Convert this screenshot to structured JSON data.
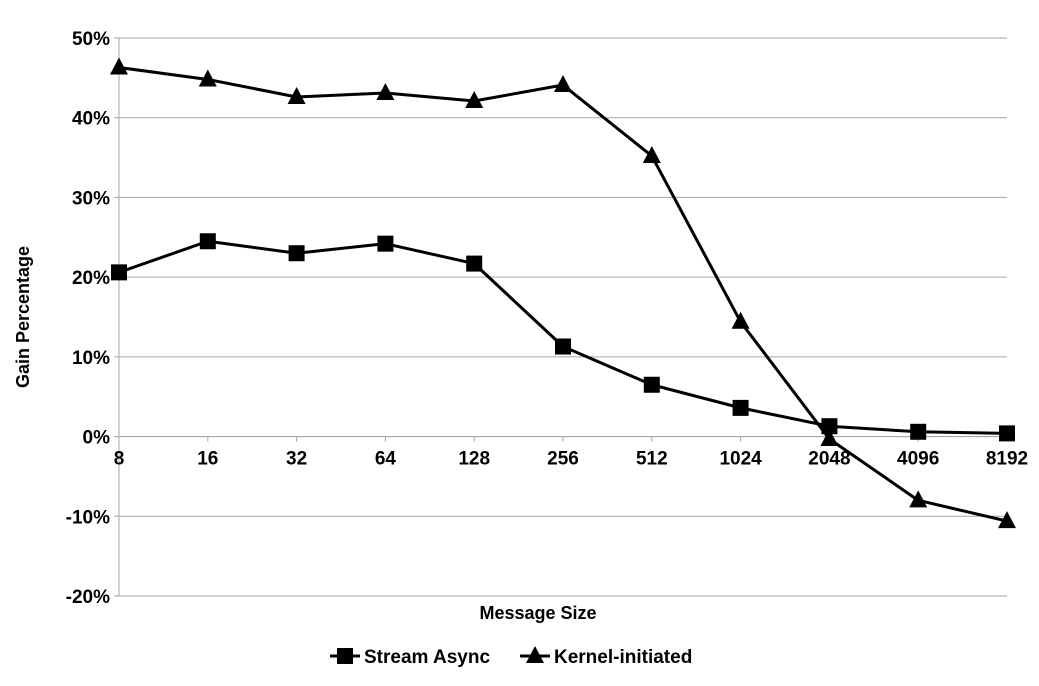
{
  "chart_data": {
    "type": "line",
    "title": "",
    "xlabel": "Message Size",
    "ylabel": "Gain Percentage",
    "categories": [
      "8",
      "16",
      "32",
      "64",
      "128",
      "256",
      "512",
      "1024",
      "2048",
      "4096",
      "8192"
    ],
    "y_ticks": [
      "-20%",
      "-10%",
      "0%",
      "10%",
      "20%",
      "30%",
      "40%",
      "50%"
    ],
    "ylim": [
      -20,
      50
    ],
    "grid": true,
    "legend_position": "bottom",
    "series": [
      {
        "name": "Stream Async",
        "marker": "square",
        "color": "#000000",
        "values": [
          20.6,
          24.5,
          23.0,
          24.2,
          21.7,
          11.3,
          6.5,
          3.6,
          1.3,
          0.6,
          0.4
        ]
      },
      {
        "name": "Kernel-initiated",
        "marker": "triangle",
        "color": "#000000",
        "values": [
          46.3,
          44.8,
          42.6,
          43.1,
          42.1,
          44.1,
          35.2,
          14.4,
          -0.3,
          -8.0,
          -10.6
        ]
      }
    ]
  }
}
